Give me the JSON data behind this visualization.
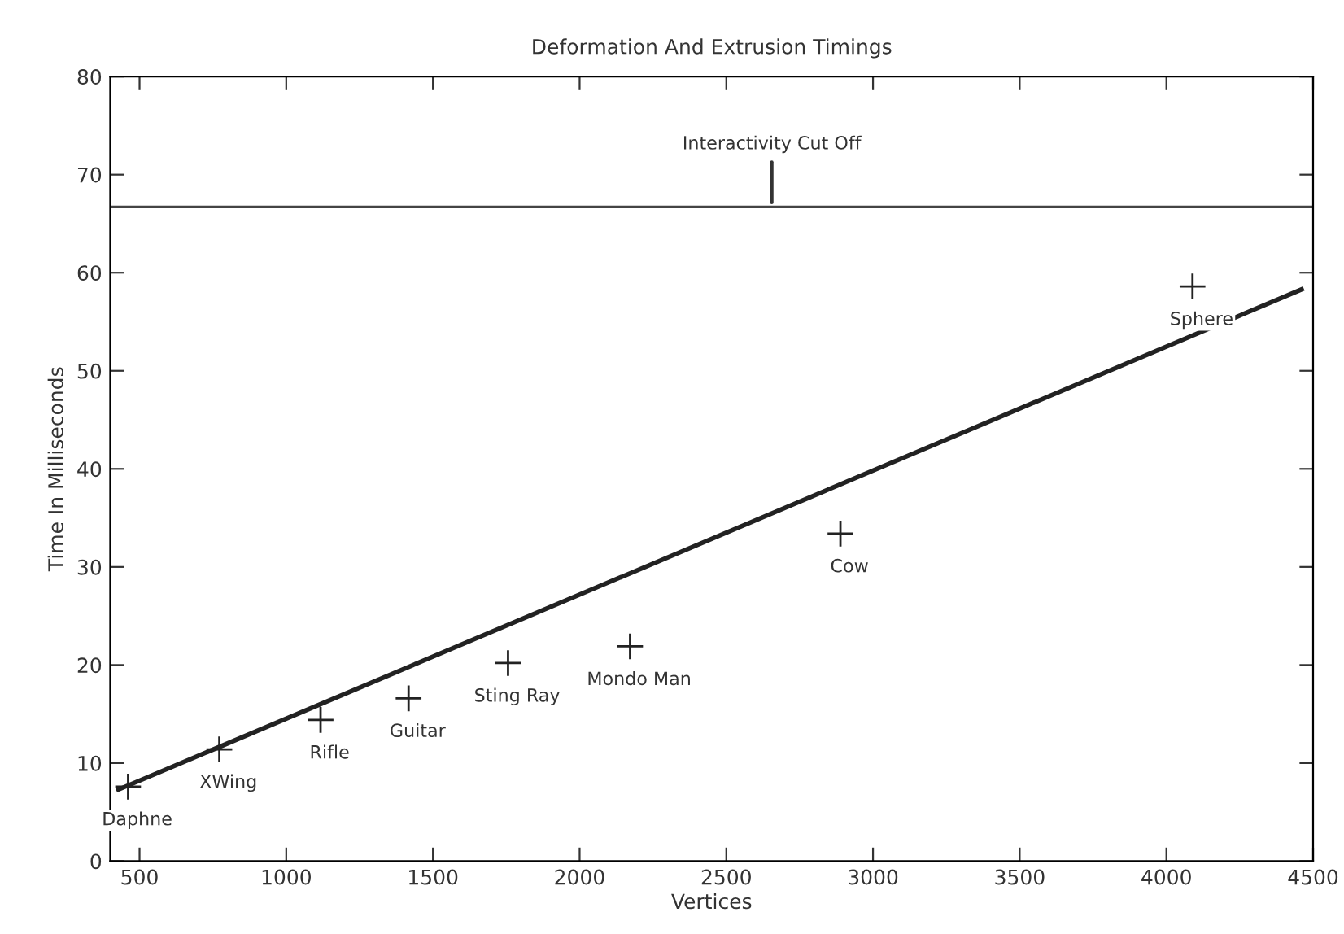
{
  "chart_data": {
    "type": "scatter",
    "title": "Deformation And Extrusion Timings",
    "xlabel": "Vertices",
    "ylabel": "Time In Milliseconds",
    "x": [
      461,
      772,
      1117,
      1417,
      1756,
      2172,
      2889,
      4089
    ],
    "series": [
      {
        "color": "#222222",
        "marker": "cross",
        "values": [
          7.6,
          11.4,
          14.4,
          16.6,
          20.2,
          21.9,
          33.4,
          58.6
        ]
      },
      {
        "type": "line",
        "color": "#222222",
        "x": [
          428,
          4461
        ],
        "values": [
          7.3,
          58.3
        ],
        "line_style": "solid"
      }
    ],
    "annotations": [
      {
        "text": "Daphne",
        "x": 461,
        "y": 7.6
      },
      {
        "text": "XWing",
        "x": 772,
        "y": 11.4
      },
      {
        "text": "Rifle",
        "x": 1117,
        "y": 14.4
      },
      {
        "text": "Guitar",
        "x": 1417,
        "y": 16.6
      },
      {
        "text": "Sting Ray",
        "x": 1756,
        "y": 20.2
      },
      {
        "text": "Mondo Man",
        "x": 2172,
        "y": 21.9
      },
      {
        "text": "Cow",
        "x": 2889,
        "y": 33.4
      },
      {
        "text": "Sphere",
        "x": 4089,
        "y": 58.6
      }
    ],
    "ref_lines": [
      {
        "axis": "y",
        "value": 66.7,
        "label": "Interactivity Cut Off",
        "color": "#444444",
        "line_style": "solid"
      }
    ],
    "xlim": [
      400,
      4500
    ],
    "ylim": [
      0,
      80
    ],
    "xticks": [
      500,
      1000,
      1500,
      2000,
      2500,
      3000,
      3500,
      4000,
      4500
    ],
    "yticks": [
      0,
      10,
      20,
      30,
      40,
      50,
      60,
      70,
      80
    ],
    "grid": false,
    "legend": false
  }
}
